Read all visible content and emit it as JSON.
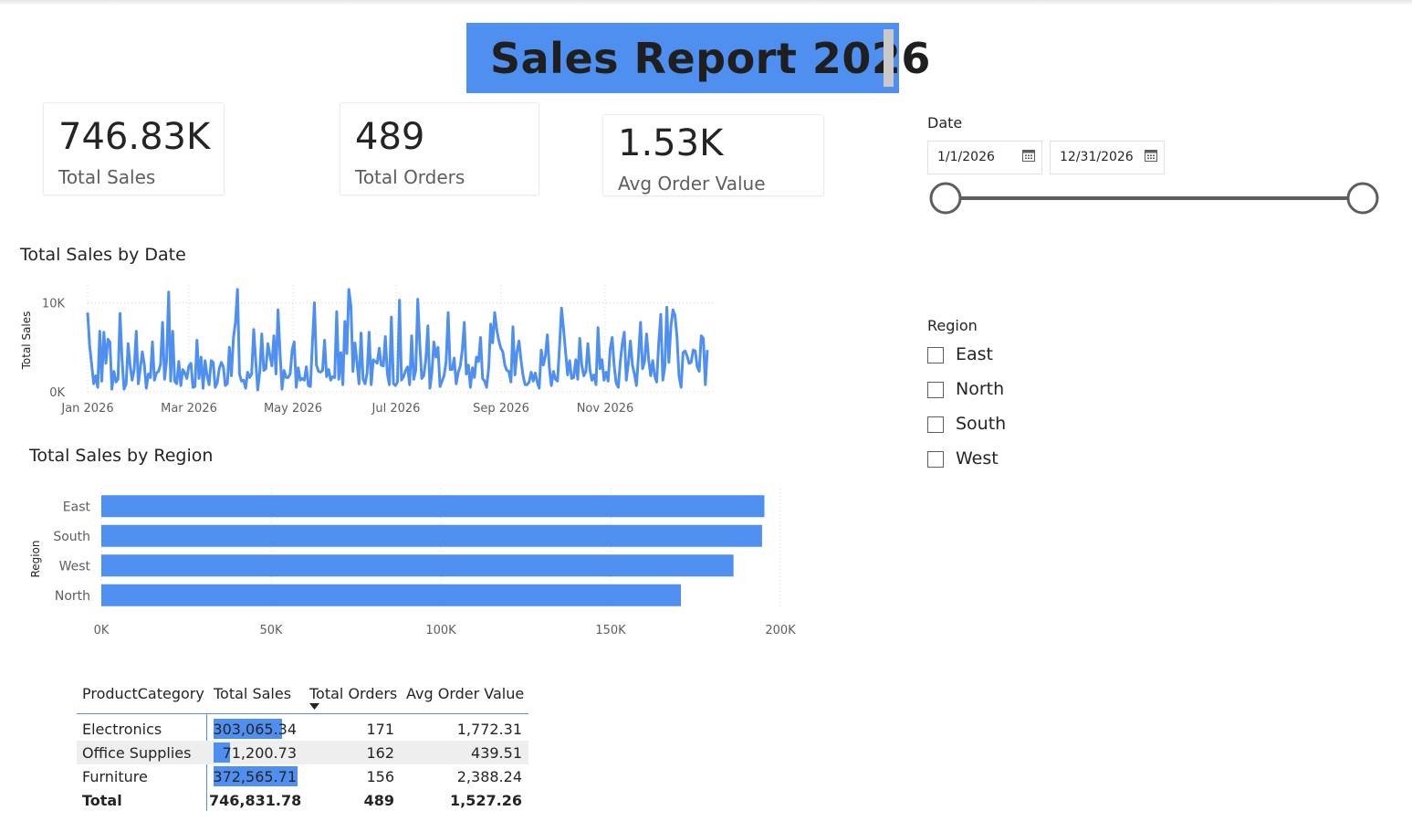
{
  "report": {
    "title": "Sales Report 2026"
  },
  "cards": [
    {
      "value": "746.83K",
      "label": "Total Sales"
    },
    {
      "value": "489",
      "label": "Total Orders"
    },
    {
      "value": "1.53K",
      "label": "Avg Order Value"
    }
  ],
  "date_slicer": {
    "title": "Date",
    "start": "1/1/2026",
    "end": "12/31/2026",
    "range_fraction": [
      0,
      1
    ]
  },
  "region_slicer": {
    "title": "Region",
    "options": [
      {
        "label": "East",
        "checked": false
      },
      {
        "label": "North",
        "checked": false
      },
      {
        "label": "South",
        "checked": false
      },
      {
        "label": "West",
        "checked": false
      }
    ]
  },
  "colors": {
    "accent": "#4f8ff0",
    "text": "#252423",
    "muted": "#605e5c",
    "zebra": "#eeeeee"
  },
  "chart_data": [
    {
      "type": "line",
      "title": "Total Sales by Date",
      "xlabel": "",
      "ylabel": "Total Sales",
      "ylim": [
        0,
        12000
      ],
      "xlim": [
        "2026-01-01",
        "2026-12-31"
      ],
      "yticks": [
        "0K",
        "10K"
      ],
      "xticks": [
        "Jan 2026",
        "Mar 2026",
        "May 2026",
        "Jul 2026",
        "Sep 2026",
        "Nov 2026"
      ],
      "grid": true,
      "series": [
        {
          "values": [
            8900,
            5200,
            3100,
            900,
            1800,
            500,
            6800,
            1200,
            6700,
            3200,
            5900,
            5600,
            300,
            2300,
            1100,
            1400,
            8800,
            3700,
            300,
            900,
            5400,
            2900,
            1300,
            2500,
            6800,
            900,
            2600,
            4500,
            3100,
            400,
            2000,
            1600,
            5600,
            1300,
            2100,
            2300,
            3100,
            7800,
            1400,
            3500,
            11200,
            1200,
            6800,
            1200,
            900,
            3400,
            700,
            2500,
            2100,
            1500,
            2900,
            3200,
            500,
            600,
            5800,
            1500,
            3900,
            400,
            3500,
            1800,
            800,
            3500,
            3300,
            500,
            1000,
            2600,
            3300,
            2800,
            700,
            900,
            5000,
            1800,
            6100,
            7800,
            11500,
            2000,
            1200,
            1300,
            400,
            2200,
            1600,
            2000,
            7000,
            3400,
            200,
            2200,
            6500,
            2400,
            2600,
            5400,
            4100,
            2900,
            6300,
            2000,
            9200,
            4400,
            300,
            2400,
            1600,
            1600,
            2000,
            4700,
            5600,
            500,
            2700,
            1300,
            1500,
            1300,
            2800,
            700,
            600,
            5500,
            10000,
            3000,
            2300,
            2200,
            2400,
            5800,
            1700,
            2500,
            1300,
            1700,
            1600,
            9000,
            1400,
            4400,
            800,
            7900,
            4300,
            11500,
            9600,
            2300,
            5500,
            3300,
            900,
            6600,
            1400,
            900,
            2100,
            6700,
            800,
            3600,
            3400,
            3200,
            4900,
            3000,
            2900,
            6200,
            2000,
            800,
            8400,
            900,
            700,
            1100,
            10300,
            1300,
            1700,
            2400,
            2800,
            800,
            6300,
            1400,
            2400,
            10400,
            5400,
            1500,
            1800,
            3700,
            7400,
            400,
            2200,
            5600,
            3900,
            5000,
            600,
            1200,
            1800,
            3400,
            8900,
            2500,
            2500,
            3800,
            900,
            2200,
            2900,
            4700,
            7800,
            2000,
            3000,
            500,
            2700,
            1600,
            3900,
            3400,
            6100,
            1500,
            1200,
            500,
            2700,
            7600,
            5500,
            8900,
            7000,
            5800,
            4900,
            4500,
            3000,
            2400,
            2300,
            1100,
            7300,
            1900,
            4500,
            5700,
            3500,
            1800,
            800,
            800,
            1100,
            2200,
            1200,
            2100,
            1100,
            400,
            4700,
            3000,
            4000,
            6400,
            2700,
            700,
            2300,
            1400,
            1200,
            5000,
            9400,
            7000,
            4400,
            1900,
            3500,
            1500,
            1600,
            3600,
            1400,
            6000,
            3000,
            1800,
            2300,
            5400,
            2500,
            1300,
            1900,
            800,
            7200,
            2600,
            3600,
            1300,
            2200,
            1200,
            4800,
            6100,
            2900,
            1000,
            500,
            3400,
            5400,
            6700,
            1300,
            3300,
            5700,
            3000,
            2000,
            700,
            4100,
            7800,
            2600,
            3400,
            6500,
            3600,
            1800,
            3500,
            1800,
            1100,
            5500,
            8700,
            1300,
            2800,
            9500,
            3300,
            7400,
            9200,
            8600,
            6200,
            1800,
            500,
            4400,
            4600,
            4000,
            3200,
            3300,
            4700,
            4600,
            2800,
            2300,
            6300,
            6000,
            800,
            4700
          ]
        }
      ]
    },
    {
      "type": "bar",
      "orientation": "horizontal",
      "title": "Total Sales by Region",
      "xlabel": "",
      "ylabel": "Region",
      "xlim": [
        0,
        200000
      ],
      "xticks": [
        "0K",
        "50K",
        "100K",
        "150K",
        "200K"
      ],
      "categories": [
        "East",
        "South",
        "West",
        "North"
      ],
      "values": [
        195300,
        194600,
        186200,
        170700
      ]
    }
  ],
  "table": {
    "columns": [
      "ProductCategory",
      "Total Sales",
      "Total Orders",
      "Avg Order Value"
    ],
    "sort_column": 2,
    "rows": [
      {
        "category": "Electronics",
        "sales": "303,065.34",
        "sales_value": 303065.34,
        "orders": "171",
        "aov": "1,772.31"
      },
      {
        "category": "Office Supplies",
        "sales": "71,200.73",
        "sales_value": 71200.73,
        "orders": "162",
        "aov": "439.51"
      },
      {
        "category": "Furniture",
        "sales": "372,565.71",
        "sales_value": 372565.71,
        "orders": "156",
        "aov": "2,388.24"
      }
    ],
    "total": {
      "label": "Total",
      "sales": "746,831.78",
      "orders": "489",
      "aov": "1,527.26"
    }
  }
}
